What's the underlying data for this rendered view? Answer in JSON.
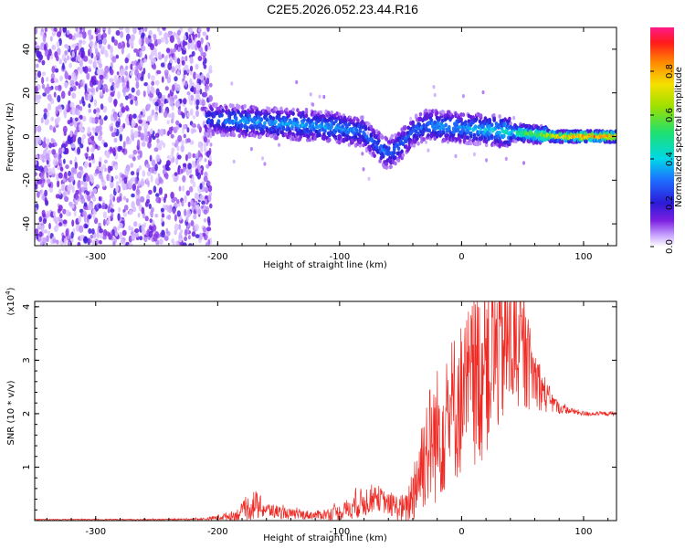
{
  "title": "C2E5.2026.052.23.44.R16",
  "chart_data": [
    {
      "type": "heatmap",
      "xlabel": "Height of straight line (km)",
      "ylabel": "Frequency (Hz)",
      "xlim": [
        -350,
        127
      ],
      "ylim": [
        -50,
        50
      ],
      "xticks": [
        -300,
        -200,
        -100,
        0,
        100
      ],
      "yticks": [
        -40,
        -20,
        0,
        20,
        40
      ],
      "colorbar": {
        "label": "Normalized spectral amplitude",
        "range": [
          0,
          1
        ],
        "ticks": [
          0.0,
          0.2,
          0.4,
          0.6,
          0.8
        ]
      },
      "noise_region_x": [
        -350,
        -210
      ],
      "ridge": {
        "x": [
          -210,
          -180,
          -150,
          -120,
          -100,
          -80,
          -70,
          -60,
          -50,
          -40,
          -30,
          -20,
          0,
          20,
          40,
          60,
          80,
          100,
          127
        ],
        "frequency": [
          8,
          7,
          6,
          5,
          4,
          2,
          -4,
          -8,
          -4,
          2,
          5,
          5,
          4,
          3,
          2,
          1,
          0,
          0,
          0
        ],
        "amplitude": [
          0.25,
          0.35,
          0.35,
          0.35,
          0.35,
          0.3,
          0.3,
          0.3,
          0.3,
          0.3,
          0.3,
          0.35,
          0.35,
          0.4,
          0.45,
          0.6,
          0.8,
          0.9,
          0.9
        ]
      }
    },
    {
      "type": "line",
      "xlabel": "Height of straight line (km)",
      "ylabel": "SNR (10 * v/v)",
      "yscale_label": "(x10",
      "yscale_exponent": "4",
      "xlim": [
        -350,
        127
      ],
      "ylim": [
        0,
        4.1
      ],
      "xticks": [
        -300,
        -200,
        -100,
        0,
        100
      ],
      "yticks": [
        1,
        2,
        3,
        4
      ],
      "series": [
        {
          "color": "#ee2a24",
          "x": [
            -350,
            -250,
            -210,
            -185,
            -170,
            -160,
            -140,
            -120,
            -100,
            -80,
            -70,
            -60,
            -45,
            -35,
            -30,
            -20,
            -10,
            0,
            10,
            20,
            30,
            40,
            50,
            60,
            70,
            80,
            90,
            100,
            110,
            127
          ],
          "y": [
            0.02,
            0.02,
            0.03,
            0.1,
            0.3,
            0.2,
            0.12,
            0.1,
            0.15,
            0.35,
            0.45,
            0.3,
            0.2,
            0.9,
            1.3,
            1.6,
            2.0,
            2.3,
            2.6,
            2.9,
            3.2,
            3.3,
            3.1,
            2.7,
            2.3,
            2.1,
            2.05,
            2.0,
            2.0,
            2.0
          ],
          "amp": [
            0.01,
            0.01,
            0.02,
            0.1,
            0.3,
            0.15,
            0.1,
            0.08,
            0.15,
            0.3,
            0.25,
            0.2,
            0.3,
            0.9,
            1.1,
            1.3,
            1.4,
            1.5,
            1.6,
            1.8,
            1.6,
            1.4,
            1.1,
            0.6,
            0.3,
            0.1,
            0.06,
            0.05,
            0.04,
            0.04
          ]
        }
      ]
    }
  ]
}
